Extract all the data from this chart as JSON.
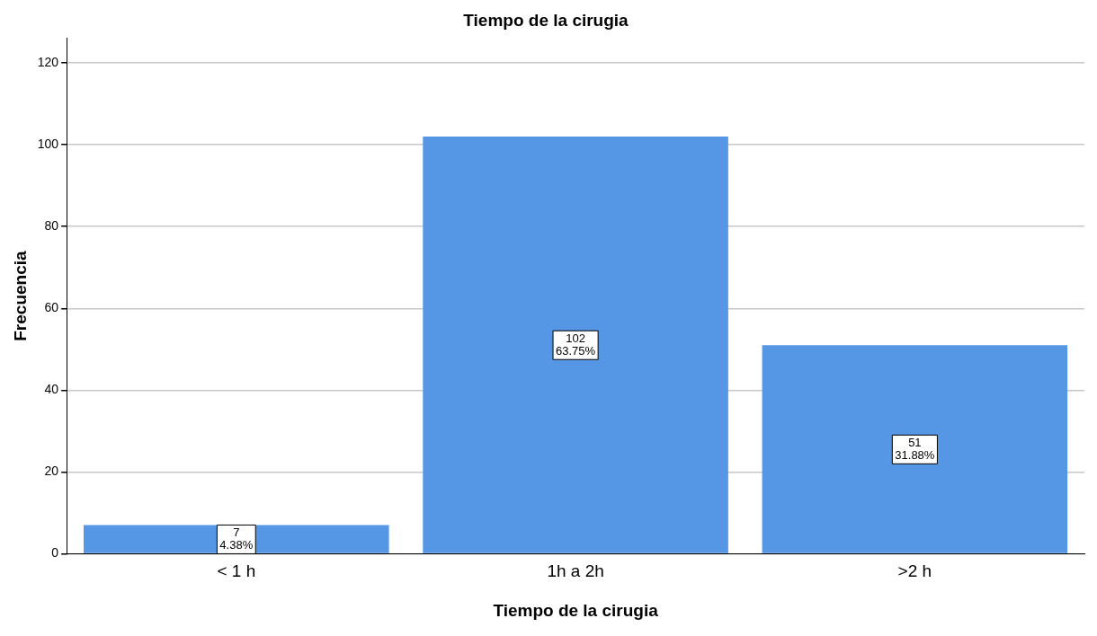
{
  "chart_data": {
    "type": "bar",
    "title": "Tiempo de la cirugia",
    "xlabel": "Tiempo de la cirugia",
    "ylabel": "Frecuencia",
    "categories": [
      "< 1 h",
      "1h a 2h",
      ">2 h"
    ],
    "values": [
      7,
      102,
      51
    ],
    "value_labels": [
      "7\n4.38%",
      "102\n63.75%",
      "51\n31.88%"
    ],
    "color": "#5596e5",
    "ylim": [
      0,
      126
    ],
    "yticks": [
      0,
      20,
      40,
      60,
      80,
      100,
      120
    ],
    "grid": "y"
  }
}
